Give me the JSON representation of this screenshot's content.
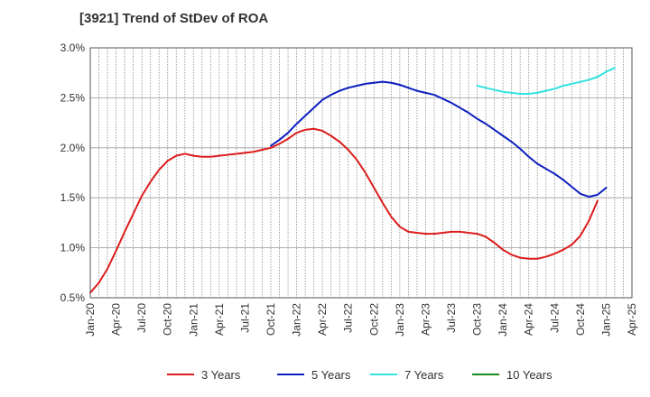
{
  "chart_data": {
    "type": "line",
    "title": "[3921]  Trend of StDev of ROA",
    "y_unit": "%",
    "ylim": [
      0.5,
      3.0
    ],
    "y_ticks": [
      "0.5%",
      "1.0%",
      "1.5%",
      "2.0%",
      "2.5%",
      "3.0%"
    ],
    "x_range": [
      "Jan-20",
      "Apr-25"
    ],
    "x_ticks": [
      "Jan-20",
      "Apr-20",
      "Jul-20",
      "Oct-20",
      "Jan-21",
      "Apr-21",
      "Jul-21",
      "Oct-21",
      "Jan-22",
      "Apr-22",
      "Jul-22",
      "Oct-22",
      "Jan-23",
      "Apr-23",
      "Jul-23",
      "Oct-23",
      "Jan-24",
      "Apr-24",
      "Jul-24",
      "Oct-24",
      "Jan-25",
      "Apr-25"
    ],
    "grid": "vertical dotted monthly, horizontal solid",
    "legend_position": "bottom",
    "series": [
      {
        "name": "3 Years",
        "color": "#dd1c1c",
        "points": [
          [
            "Jan-20",
            0.55
          ],
          [
            "Feb-20",
            0.65
          ],
          [
            "Mar-20",
            0.79
          ],
          [
            "Apr-20",
            0.97
          ],
          [
            "May-20",
            1.16
          ],
          [
            "Jun-20",
            1.34
          ],
          [
            "Jul-20",
            1.52
          ],
          [
            "Aug-20",
            1.66
          ],
          [
            "Sep-20",
            1.78
          ],
          [
            "Oct-20",
            1.87
          ],
          [
            "Nov-20",
            1.92
          ],
          [
            "Dec-20",
            1.94
          ],
          [
            "Jan-21",
            1.92
          ],
          [
            "Feb-21",
            1.91
          ],
          [
            "Mar-21",
            1.91
          ],
          [
            "Apr-21",
            1.92
          ],
          [
            "May-21",
            1.93
          ],
          [
            "Jun-21",
            1.94
          ],
          [
            "Jul-21",
            1.95
          ],
          [
            "Aug-21",
            1.96
          ],
          [
            "Sep-21",
            1.98
          ],
          [
            "Oct-21",
            2.0
          ],
          [
            "Nov-21",
            2.04
          ],
          [
            "Dec-21",
            2.09
          ],
          [
            "Jan-22",
            2.15
          ],
          [
            "Feb-22",
            2.18
          ],
          [
            "Mar-22",
            2.19
          ],
          [
            "Apr-22",
            2.17
          ],
          [
            "May-22",
            2.12
          ],
          [
            "Jun-22",
            2.06
          ],
          [
            "Jul-22",
            1.98
          ],
          [
            "Aug-22",
            1.88
          ],
          [
            "Sep-22",
            1.75
          ],
          [
            "Oct-22",
            1.6
          ],
          [
            "Nov-22",
            1.45
          ],
          [
            "Dec-22",
            1.31
          ],
          [
            "Jan-23",
            1.21
          ],
          [
            "Feb-23",
            1.16
          ],
          [
            "Mar-23",
            1.15
          ],
          [
            "Apr-23",
            1.14
          ],
          [
            "May-23",
            1.14
          ],
          [
            "Jun-23",
            1.15
          ],
          [
            "Jul-23",
            1.16
          ],
          [
            "Aug-23",
            1.16
          ],
          [
            "Sep-23",
            1.15
          ],
          [
            "Oct-23",
            1.14
          ],
          [
            "Nov-23",
            1.11
          ],
          [
            "Dec-23",
            1.05
          ],
          [
            "Jan-24",
            0.98
          ],
          [
            "Feb-24",
            0.93
          ],
          [
            "Mar-24",
            0.9
          ],
          [
            "Apr-24",
            0.89
          ],
          [
            "May-24",
            0.89
          ],
          [
            "Jun-24",
            0.91
          ],
          [
            "Jul-24",
            0.94
          ],
          [
            "Aug-24",
            0.98
          ],
          [
            "Sep-24",
            1.03
          ],
          [
            "Oct-24",
            1.12
          ],
          [
            "Nov-24",
            1.27
          ],
          [
            "Dec-24",
            1.47
          ]
        ]
      },
      {
        "name": "5 Years",
        "color": "#0c1fbf",
        "points": [
          [
            "Oct-21",
            2.02
          ],
          [
            "Nov-21",
            2.08
          ],
          [
            "Dec-21",
            2.15
          ],
          [
            "Jan-22",
            2.24
          ],
          [
            "Feb-22",
            2.32
          ],
          [
            "Mar-22",
            2.4
          ],
          [
            "Apr-22",
            2.48
          ],
          [
            "May-22",
            2.53
          ],
          [
            "Jun-22",
            2.57
          ],
          [
            "Jul-22",
            2.6
          ],
          [
            "Aug-22",
            2.62
          ],
          [
            "Sep-22",
            2.64
          ],
          [
            "Oct-22",
            2.65
          ],
          [
            "Nov-22",
            2.66
          ],
          [
            "Dec-22",
            2.65
          ],
          [
            "Jan-23",
            2.63
          ],
          [
            "Feb-23",
            2.6
          ],
          [
            "Mar-23",
            2.57
          ],
          [
            "Apr-23",
            2.55
          ],
          [
            "May-23",
            2.53
          ],
          [
            "Jun-23",
            2.49
          ],
          [
            "Jul-23",
            2.45
          ],
          [
            "Aug-23",
            2.4
          ],
          [
            "Sep-23",
            2.35
          ],
          [
            "Oct-23",
            2.29
          ],
          [
            "Nov-23",
            2.24
          ],
          [
            "Dec-23",
            2.18
          ],
          [
            "Jan-24",
            2.12
          ],
          [
            "Feb-24",
            2.06
          ],
          [
            "Mar-24",
            1.99
          ],
          [
            "Apr-24",
            1.91
          ],
          [
            "May-24",
            1.84
          ],
          [
            "Jun-24",
            1.79
          ],
          [
            "Jul-24",
            1.74
          ],
          [
            "Aug-24",
            1.68
          ],
          [
            "Sep-24",
            1.61
          ],
          [
            "Oct-24",
            1.54
          ],
          [
            "Nov-24",
            1.51
          ],
          [
            "Dec-24",
            1.53
          ],
          [
            "Jan-25",
            1.6
          ]
        ]
      },
      {
        "name": "7 Years",
        "color": "#33e3e3",
        "points": [
          [
            "Oct-23",
            2.62
          ],
          [
            "Nov-23",
            2.6
          ],
          [
            "Dec-23",
            2.58
          ],
          [
            "Jan-24",
            2.56
          ],
          [
            "Feb-24",
            2.55
          ],
          [
            "Mar-24",
            2.54
          ],
          [
            "Apr-24",
            2.54
          ],
          [
            "May-24",
            2.55
          ],
          [
            "Jun-24",
            2.57
          ],
          [
            "Jul-24",
            2.59
          ],
          [
            "Aug-24",
            2.62
          ],
          [
            "Sep-24",
            2.64
          ],
          [
            "Oct-24",
            2.66
          ],
          [
            "Nov-24",
            2.68
          ],
          [
            "Dec-24",
            2.71
          ],
          [
            "Jan-25",
            2.76
          ],
          [
            "Feb-25",
            2.8
          ]
        ]
      },
      {
        "name": "10 Years",
        "color": "#1f8a1f",
        "points": []
      }
    ]
  }
}
